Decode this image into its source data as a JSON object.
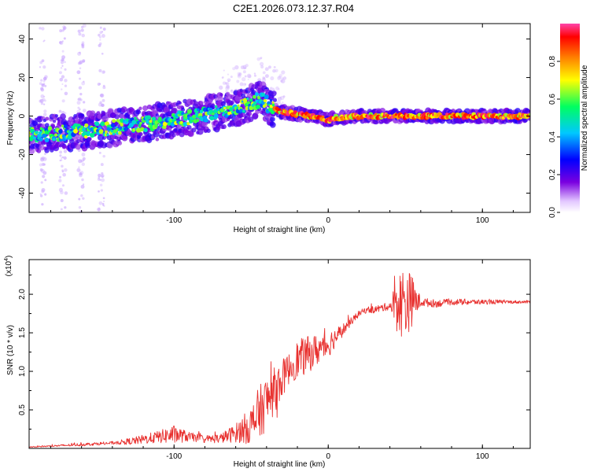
{
  "title": "C2E1.2026.073.12.37.R04",
  "chart_data": [
    {
      "type": "heatmap",
      "xlabel": "Height of straight line (km)",
      "ylabel": "Frequency (Hz)",
      "xlim": [
        -194,
        131
      ],
      "ylim": [
        -50,
        48
      ],
      "xticks": [
        -100,
        0,
        100
      ],
      "yticks": [
        -40,
        -20,
        0,
        20,
        40
      ],
      "xtick_labels": [
        "-100",
        "0",
        "100"
      ],
      "ytick_labels": [
        "-40",
        "-20",
        "0",
        "20",
        "40"
      ],
      "ridge": {
        "height_km": [
          -194,
          -180,
          -160,
          -140,
          -120,
          -100,
          -80,
          -60,
          -50,
          -43,
          -38,
          -30,
          -20,
          -10,
          -5,
          0,
          5,
          20,
          40,
          60,
          80,
          100,
          120,
          131
        ],
        "frequency_hz": [
          -10,
          -9,
          -8,
          -6,
          -4,
          -2,
          1,
          4,
          7,
          9,
          5,
          2,
          1,
          0,
          -1,
          -2,
          -1,
          0,
          0,
          0,
          0,
          0,
          0,
          0
        ]
      },
      "colorbar": {
        "label": "Normalized spectral amplitude",
        "range": [
          0.0,
          1.0
        ],
        "ticks": [
          0.0,
          0.2,
          0.4,
          0.6,
          0.8
        ],
        "tick_labels": [
          "0.0",
          "0.2",
          "0.4",
          "0.6",
          "0.8"
        ],
        "colormap": [
          "#ffffff",
          "#7a00e0",
          "#0000ff",
          "#00c8ff",
          "#00ff60",
          "#ffff00",
          "#ff8000",
          "#ff0000",
          "#ff44aa"
        ]
      }
    },
    {
      "type": "line",
      "xlabel": "Height of straight line (km)",
      "ylabel": "SNR (10 * v/v)",
      "scale_label": "(x10",
      "scale_exponent": "4",
      "scale_close": ")",
      "xlim": [
        -194,
        131
      ],
      "ylim": [
        0,
        2.45
      ],
      "xticks": [
        -100,
        0,
        100
      ],
      "yticks": [
        0.5,
        1.0,
        1.5,
        2.0
      ],
      "xtick_labels": [
        "-100",
        "0",
        "100"
      ],
      "ytick_labels": [
        "0.5",
        "1.0",
        "1.5",
        "2.0"
      ],
      "line_color": "#e8312f",
      "series": [
        {
          "name": "SNR",
          "x": [
            -194,
            -180,
            -160,
            -140,
            -125,
            -110,
            -100,
            -90,
            -80,
            -70,
            -60,
            -50,
            -45,
            -40,
            -35,
            -30,
            -25,
            -20,
            -15,
            -10,
            -5,
            0,
            5,
            10,
            15,
            20,
            25,
            30,
            40,
            45,
            50,
            55,
            60,
            70,
            80,
            90,
            100,
            110,
            115,
            120,
            131
          ],
          "y": [
            0.02,
            0.03,
            0.05,
            0.07,
            0.1,
            0.15,
            0.18,
            0.15,
            0.12,
            0.13,
            0.2,
            0.3,
            0.45,
            0.6,
            0.75,
            0.9,
            1.05,
            1.15,
            1.2,
            1.25,
            1.3,
            1.35,
            1.45,
            1.55,
            1.65,
            1.75,
            1.8,
            1.8,
            1.85,
            1.88,
            1.9,
            1.92,
            1.9,
            1.88,
            1.9,
            1.9,
            1.9,
            1.9,
            1.9,
            1.9,
            1.9
          ],
          "noise_amplitude": [
            0.01,
            0.01,
            0.02,
            0.02,
            0.05,
            0.08,
            0.12,
            0.06,
            0.05,
            0.06,
            0.12,
            0.25,
            0.35,
            0.35,
            0.3,
            0.25,
            0.2,
            0.25,
            0.25,
            0.22,
            0.2,
            0.18,
            0.12,
            0.08,
            0.05,
            0.04,
            0.04,
            0.05,
            0.05,
            0.4,
            0.5,
            0.3,
            0.06,
            0.05,
            0.04,
            0.04,
            0.03,
            0.03,
            0.02,
            0.02,
            0.02
          ]
        }
      ]
    }
  ]
}
